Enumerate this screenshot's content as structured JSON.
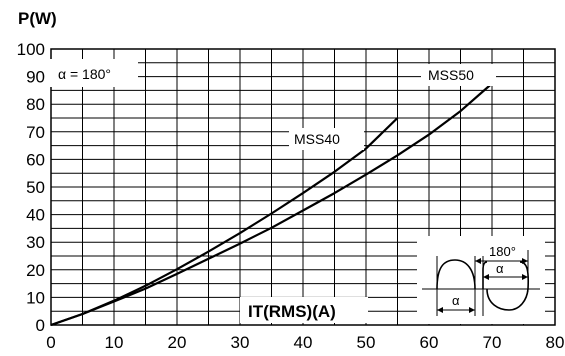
{
  "chart_data": {
    "type": "line",
    "ylabel": "P(W)",
    "xlabel": "IT(RMS)(A)",
    "xlim": [
      0,
      80
    ],
    "ylim": [
      0,
      100
    ],
    "xticks": [
      "0",
      "10",
      "20",
      "30",
      "40",
      "50",
      "60",
      "70",
      "80"
    ],
    "yticks": [
      "0",
      "10",
      "20",
      "30",
      "40",
      "50",
      "60",
      "70",
      "80",
      "90",
      "100"
    ],
    "grid": "x every 5, y every 5",
    "annotation": "α = 180°",
    "series": [
      {
        "name": "MSS40",
        "x": [
          0,
          5,
          10,
          15,
          20,
          25,
          30,
          35,
          40,
          45,
          50,
          55
        ],
        "y": [
          0,
          4,
          8.8,
          14.2,
          20.2,
          26.6,
          33.3,
          40.4,
          47.8,
          55.5,
          63.9,
          75
        ]
      },
      {
        "name": "MSS50",
        "x": [
          0,
          5,
          10,
          15,
          20,
          25,
          30,
          35,
          40,
          45,
          50,
          55,
          60,
          65,
          70
        ],
        "y": [
          0,
          4,
          8.5,
          13.2,
          18.5,
          24,
          29.5,
          35.2,
          41.5,
          47.8,
          54.5,
          61.5,
          69,
          77.5,
          87.5
        ]
      }
    ],
    "inset": {
      "labels": [
        "180°",
        "α",
        "α"
      ]
    }
  }
}
